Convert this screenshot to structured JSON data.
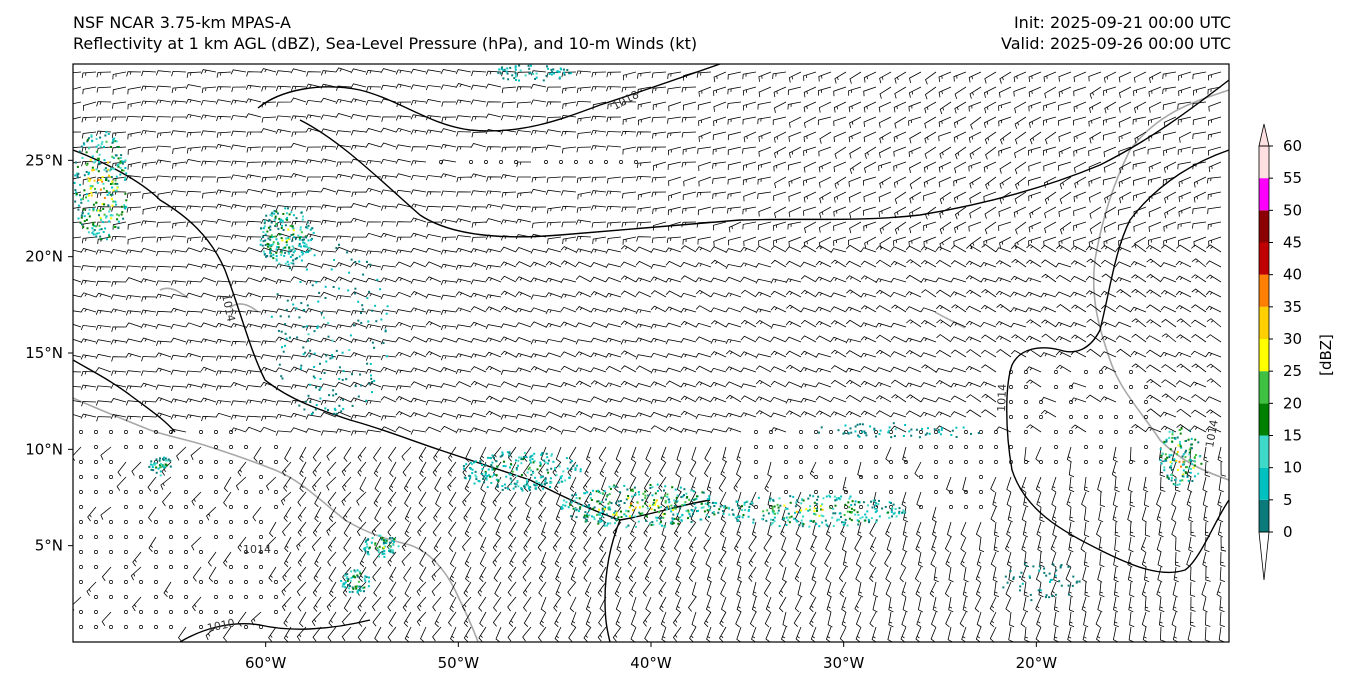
{
  "header": {
    "title_left_1": "NSF NCAR 3.75-km MPAS-A",
    "title_left_2": "Reflectivity at 1 km AGL (dBZ), Sea-Level Pressure (hPa), and 10-m Winds (kt)",
    "title_right_1": "Init: 2025-09-21 00:00 UTC",
    "title_right_2": "Valid: 2025-09-26 00:00 UTC"
  },
  "map": {
    "lon_range": [
      -70,
      -10
    ],
    "lat_range": [
      0,
      30
    ],
    "x_ticks": [
      {
        "lon": -60,
        "label": "60°W"
      },
      {
        "lon": -50,
        "label": "50°W"
      },
      {
        "lon": -40,
        "label": "40°W"
      },
      {
        "lon": -30,
        "label": "30°W"
      },
      {
        "lon": -20,
        "label": "20°W"
      }
    ],
    "y_ticks": [
      {
        "lat": 25,
        "label": "25°N"
      },
      {
        "lat": 20,
        "label": "20°N"
      },
      {
        "lat": 15,
        "label": "15°N"
      },
      {
        "lat": 10,
        "label": "10°N"
      },
      {
        "lat": 5,
        "label": "5°N"
      }
    ],
    "isobar_labels": [
      "1018",
      "1014",
      "1014",
      "1014",
      "1014",
      "1010"
    ]
  },
  "colorbar": {
    "label": "[dBZ]",
    "levels": [
      "0",
      "5",
      "10",
      "15",
      "20",
      "25",
      "30",
      "35",
      "40",
      "45",
      "50",
      "55",
      "60"
    ],
    "colors": [
      "#0a7a7a",
      "#00c0c0",
      "#3fd9c9",
      "#008000",
      "#40c040",
      "#ffff00",
      "#ffd000",
      "#ff8000",
      "#c00000",
      "#8b0000",
      "#ff00ff",
      "#ffe0e0"
    ]
  },
  "colors": {
    "isobar": "#000000",
    "coastline": "#a8a8a8",
    "barb": "#000000"
  }
}
